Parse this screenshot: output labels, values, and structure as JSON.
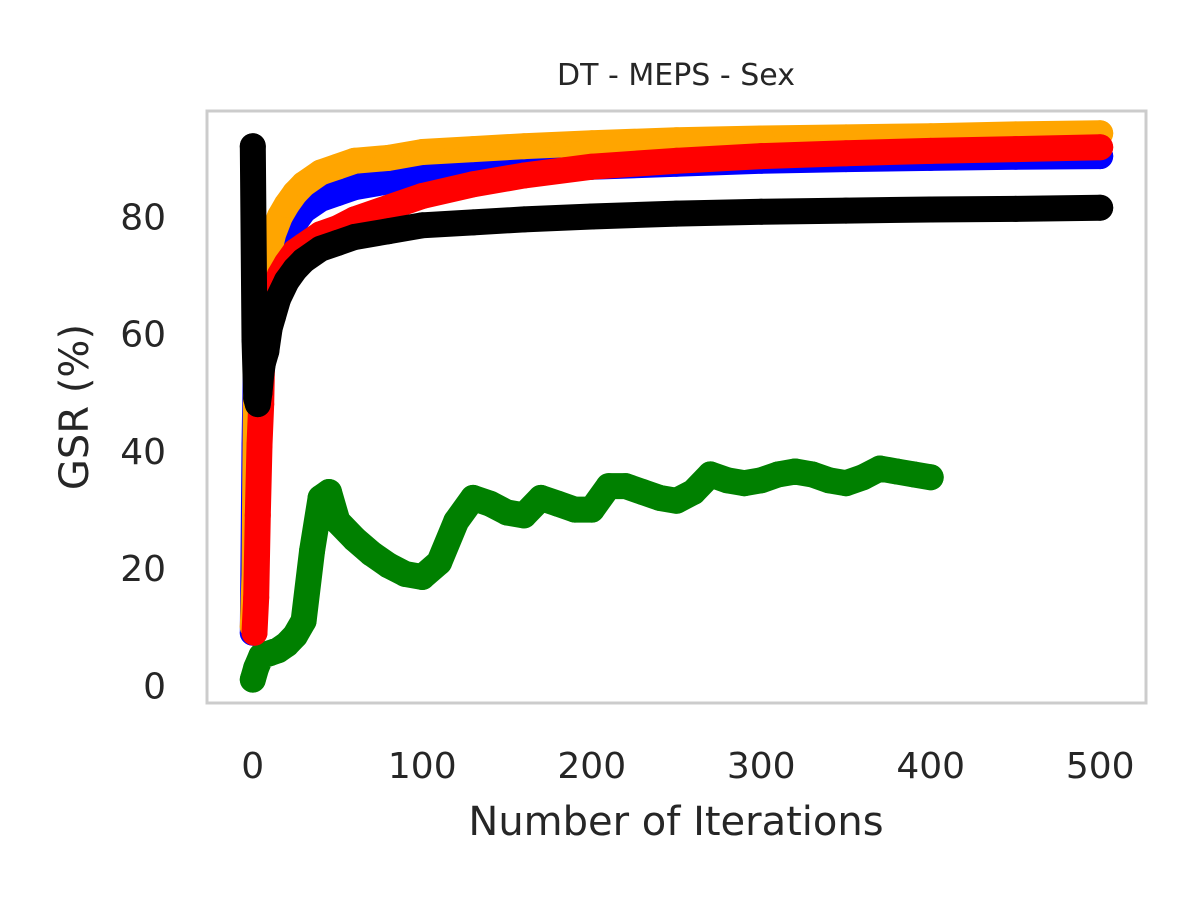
{
  "chart_data": {
    "type": "line",
    "title": "DT - MEPS - Sex",
    "xlabel": "Number of Iterations",
    "ylabel": "GSR (%)",
    "xlim": [
      -27,
      527
    ],
    "ylim": [
      -3,
      98
    ],
    "xticks": [
      0,
      100,
      200,
      300,
      400,
      500
    ],
    "yticks": [
      0,
      20,
      40,
      60,
      80
    ],
    "grid": false,
    "legend": "none",
    "series": [
      {
        "color": "#008000",
        "x": [
          0,
          2,
          5,
          10,
          15,
          20,
          25,
          30,
          35,
          40,
          45,
          50,
          60,
          70,
          80,
          90,
          100,
          110,
          120,
          130,
          140,
          150,
          160,
          170,
          180,
          190,
          200,
          210,
          220,
          230,
          240,
          250,
          260,
          270,
          280,
          290,
          300,
          310,
          320,
          330,
          340,
          350,
          360,
          370,
          380,
          390,
          400
        ],
        "y": [
          1,
          3,
          5,
          5.5,
          6,
          7,
          8.5,
          11,
          23,
          32,
          33,
          28,
          25,
          22.5,
          20.5,
          19,
          18.5,
          21,
          28,
          32,
          31,
          29.5,
          29,
          32,
          31,
          30,
          30,
          34,
          34,
          33,
          32,
          31.5,
          33,
          36,
          35,
          34.5,
          35,
          36,
          36.5,
          36,
          35,
          34.5,
          35.5,
          37,
          36.5,
          36,
          35.5
        ]
      },
      {
        "color": "#0000ff",
        "x": [
          0,
          1,
          2,
          3,
          5,
          8,
          12,
          16,
          20,
          25,
          30,
          40,
          50,
          60,
          80,
          100,
          130,
          160,
          200,
          250,
          300,
          350,
          400,
          450,
          500
        ],
        "y": [
          9,
          41,
          58,
          64,
          66,
          68,
          72,
          75,
          77,
          79,
          81,
          83,
          84,
          85,
          86,
          87,
          87.5,
          88,
          88.5,
          89,
          89.5,
          89.8,
          90,
          90.2,
          90.3
        ]
      },
      {
        "color": "#ffa500",
        "x": [
          0,
          1,
          2,
          3,
          5,
          8,
          12,
          16,
          20,
          25,
          30,
          40,
          50,
          60,
          80,
          100,
          130,
          160,
          200,
          250,
          300,
          350,
          400,
          450,
          500
        ],
        "y": [
          10,
          19,
          55,
          62,
          68,
          72,
          77,
          80,
          82,
          84,
          85.5,
          87.5,
          88.5,
          89.5,
          90,
          91,
          91.5,
          92,
          92.5,
          93,
          93.3,
          93.5,
          93.7,
          94,
          94.2
        ]
      },
      {
        "color": "#ff0000",
        "x": [
          1,
          2,
          3,
          4,
          5,
          6,
          8,
          12,
          16,
          20,
          25,
          30,
          40,
          50,
          60,
          80,
          100,
          130,
          160,
          200,
          250,
          300,
          350,
          400,
          450,
          500
        ],
        "y": [
          9,
          15,
          29,
          41,
          48,
          62,
          64,
          67,
          70,
          72,
          74,
          75,
          77,
          78,
          79.5,
          81.5,
          83.5,
          85.5,
          87,
          88.5,
          89.5,
          90.3,
          90.8,
          91.2,
          91.5,
          91.8
        ]
      },
      {
        "color": "#000000",
        "x": [
          0,
          1,
          2,
          3,
          4,
          5,
          6,
          8,
          10,
          12,
          15,
          20,
          25,
          30,
          40,
          50,
          60,
          80,
          100,
          130,
          160,
          200,
          250,
          300,
          350,
          400,
          450,
          500
        ],
        "y": [
          92,
          59,
          49,
          48,
          50,
          53,
          55,
          57,
          61,
          63,
          66,
          69,
          71,
          72.5,
          74.5,
          75.5,
          76.5,
          77.5,
          78.5,
          79,
          79.5,
          80,
          80.5,
          80.8,
          81,
          81.2,
          81.3,
          81.5
        ]
      }
    ]
  }
}
